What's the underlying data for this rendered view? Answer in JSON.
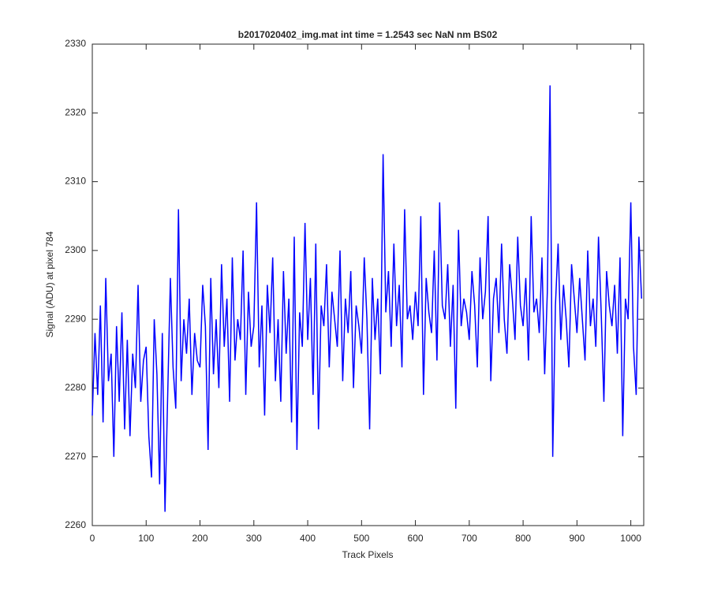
{
  "chart_data": {
    "type": "line",
    "title": "b2017020402_img.mat int time = 1.2543 sec  NaN nm BS02",
    "xlabel": "Track Pixels",
    "ylabel": "Signal (ADU) at pixel 784",
    "color": "#0000ff",
    "xlim": [
      0,
      1024
    ],
    "xticks": [
      0,
      100,
      200,
      300,
      400,
      500,
      600,
      700,
      800,
      900,
      1000
    ],
    "ylim": [
      2260,
      2330
    ],
    "yticks": [
      2260,
      2270,
      2280,
      2290,
      2300,
      2310,
      2320,
      2330
    ],
    "grid": false,
    "x": [
      0,
      5,
      10,
      15,
      20,
      25,
      30,
      35,
      40,
      45,
      50,
      55,
      60,
      65,
      70,
      75,
      80,
      85,
      90,
      95,
      100,
      105,
      110,
      115,
      120,
      125,
      130,
      135,
      140,
      145,
      150,
      155,
      160,
      165,
      170,
      175,
      180,
      185,
      190,
      195,
      200,
      205,
      210,
      215,
      220,
      225,
      230,
      235,
      240,
      245,
      250,
      255,
      260,
      265,
      270,
      275,
      280,
      285,
      290,
      295,
      300,
      305,
      310,
      315,
      320,
      325,
      330,
      335,
      340,
      345,
      350,
      355,
      360,
      365,
      370,
      375,
      380,
      385,
      390,
      395,
      400,
      405,
      410,
      415,
      420,
      425,
      430,
      435,
      440,
      445,
      450,
      455,
      460,
      465,
      470,
      475,
      480,
      485,
      490,
      495,
      500,
      505,
      510,
      515,
      520,
      525,
      530,
      535,
      540,
      545,
      550,
      555,
      560,
      565,
      570,
      575,
      580,
      585,
      590,
      595,
      600,
      605,
      610,
      615,
      620,
      625,
      630,
      635,
      640,
      645,
      650,
      655,
      660,
      665,
      670,
      675,
      680,
      685,
      690,
      695,
      700,
      705,
      710,
      715,
      720,
      725,
      730,
      735,
      740,
      745,
      750,
      755,
      760,
      765,
      770,
      775,
      780,
      785,
      790,
      795,
      800,
      805,
      810,
      815,
      820,
      825,
      830,
      835,
      840,
      845,
      850,
      855,
      860,
      865,
      870,
      875,
      880,
      885,
      890,
      895,
      900,
      905,
      910,
      915,
      920,
      925,
      930,
      935,
      940,
      945,
      950,
      955,
      960,
      965,
      970,
      975,
      980,
      985,
      990,
      995,
      1000,
      1005,
      1010,
      1015,
      1020
    ],
    "values": [
      2276,
      2288,
      2279,
      2292,
      2275,
      2296,
      2281,
      2285,
      2270,
      2289,
      2278,
      2291,
      2274,
      2287,
      2273,
      2285,
      2280,
      2295,
      2278,
      2284,
      2286,
      2273,
      2267,
      2290,
      2282,
      2266,
      2288,
      2262,
      2279,
      2296,
      2283,
      2277,
      2306,
      2281,
      2290,
      2285,
      2293,
      2279,
      2288,
      2284,
      2283,
      2295,
      2289,
      2271,
      2296,
      2282,
      2290,
      2280,
      2298,
      2286,
      2293,
      2278,
      2299,
      2284,
      2290,
      2287,
      2300,
      2279,
      2294,
      2286,
      2289,
      2307,
      2283,
      2292,
      2276,
      2295,
      2288,
      2299,
      2281,
      2290,
      2278,
      2297,
      2285,
      2293,
      2275,
      2302,
      2271,
      2291,
      2286,
      2304,
      2287,
      2296,
      2279,
      2301,
      2274,
      2292,
      2289,
      2298,
      2283,
      2294,
      2290,
      2286,
      2300,
      2281,
      2293,
      2288,
      2297,
      2280,
      2292,
      2289,
      2285,
      2299,
      2290,
      2274,
      2296,
      2287,
      2293,
      2282,
      2314,
      2291,
      2297,
      2286,
      2301,
      2289,
      2295,
      2283,
      2306,
      2290,
      2292,
      2287,
      2294,
      2289,
      2305,
      2279,
      2296,
      2291,
      2288,
      2300,
      2284,
      2307,
      2292,
      2290,
      2298,
      2286,
      2295,
      2277,
      2303,
      2289,
      2293,
      2291,
      2287,
      2297,
      2292,
      2283,
      2299,
      2290,
      2294,
      2305,
      2281,
      2293,
      2296,
      2288,
      2301,
      2290,
      2285,
      2298,
      2293,
      2287,
      2302,
      2292,
      2289,
      2296,
      2284,
      2305,
      2291,
      2293,
      2288,
      2299,
      2282,
      2294,
      2324,
      2270,
      2292,
      2301,
      2287,
      2295,
      2290,
      2283,
      2298,
      2293,
      2288,
      2296,
      2290,
      2284,
      2300,
      2289,
      2293,
      2286,
      2302,
      2291,
      2278,
      2297,
      2292,
      2289,
      2295,
      2285,
      2299,
      2273,
      2293,
      2290,
      2307,
      2286,
      2279,
      2302,
      2293
    ]
  }
}
